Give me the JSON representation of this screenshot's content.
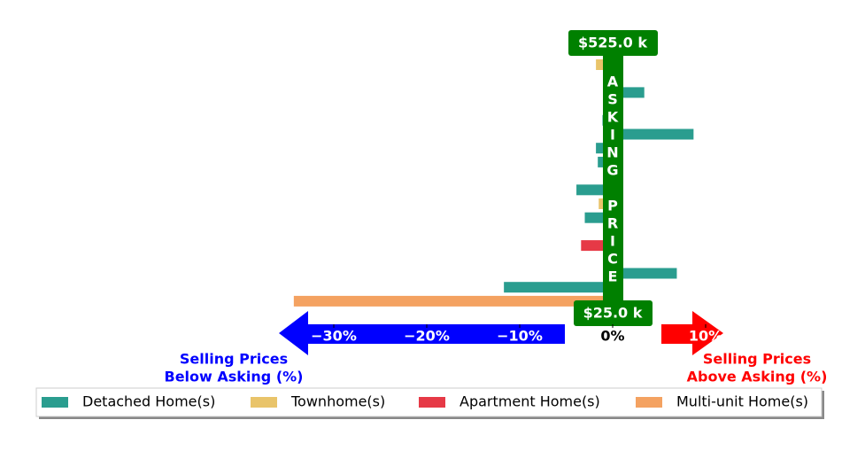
{
  "chart_data": {
    "type": "bar",
    "orientation": "horizontal",
    "categories": [
      null,
      null,
      null,
      null,
      null,
      null,
      null,
      null,
      null,
      null,
      null,
      null,
      null,
      null,
      null,
      null,
      null,
      null
    ],
    "series": [
      {
        "name": "Detached Home(s)",
        "color": "#2a9d8f",
        "values": [
          null,
          null,
          3.4,
          null,
          -1.1,
          8.7,
          -1.8,
          -1.6,
          null,
          -3.9,
          null,
          -3.0,
          null,
          null,
          null,
          6.9,
          -11.7,
          null
        ]
      },
      {
        "name": "Townhome(s)",
        "color": "#e9c46a",
        "values": [
          -1.8,
          null,
          null,
          null,
          null,
          null,
          null,
          null,
          null,
          null,
          -1.5,
          null,
          null,
          null,
          null,
          null,
          null,
          null
        ]
      },
      {
        "name": "Apartment Home(s)",
        "color": "#e63946",
        "values": [
          null,
          null,
          null,
          null,
          null,
          null,
          null,
          null,
          null,
          null,
          null,
          null,
          null,
          -3.4,
          null,
          null,
          null,
          null
        ]
      },
      {
        "name": "Multi-unit Home(s)",
        "color": "#f4a261",
        "values": [
          null,
          null,
          null,
          null,
          null,
          null,
          null,
          null,
          null,
          null,
          null,
          null,
          null,
          null,
          null,
          null,
          null,
          -34.3
        ]
      }
    ],
    "xlim": [
      -36,
      12
    ],
    "xticks": [
      {
        "value": -30,
        "label": "−30%"
      },
      {
        "value": -20,
        "label": "−20%"
      },
      {
        "value": -10,
        "label": "−10%"
      },
      {
        "value": 0,
        "label": "0%"
      },
      {
        "value": 10,
        "label": "10%"
      }
    ],
    "top_label": "$525.0 k",
    "bottom_label": "$25.0 k",
    "asking_label": "ASKING PRICE",
    "below_label": [
      "Selling Prices",
      "Below Asking (%)"
    ],
    "above_label": [
      "Selling Prices",
      "Above Asking (%)"
    ],
    "asking_color": "#008000",
    "below_color": "#0000ff",
    "above_color": "#ff0000"
  }
}
